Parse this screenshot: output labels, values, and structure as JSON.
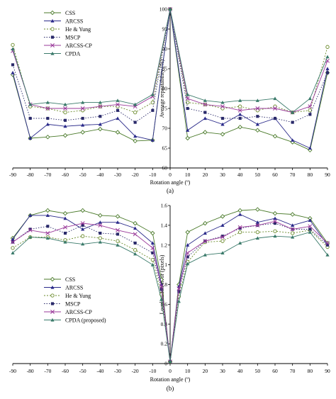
{
  "chart_data": [
    {
      "type": "line",
      "panel_label": "(a)",
      "xlabel": "Rotation angle (º)",
      "ylabel": "Average repeatability (%)",
      "x": [
        -90,
        -80,
        -70,
        -60,
        -50,
        -40,
        -30,
        -20,
        -10,
        0,
        10,
        20,
        30,
        40,
        50,
        60,
        70,
        80,
        90
      ],
      "xticks": [
        -90,
        -80,
        -70,
        -60,
        -50,
        -40,
        -30,
        -20,
        -10,
        0,
        10,
        20,
        30,
        40,
        50,
        60,
        70,
        80,
        90
      ],
      "ylim": [
        60,
        100
      ],
      "yticks": [
        60,
        65,
        70,
        75,
        80,
        85,
        90,
        95,
        100
      ],
      "legend_position": "top-left",
      "series": [
        {
          "name": "CSS",
          "color": "#4a7a2a",
          "dash": "",
          "marker": "diamond-open",
          "values": [
            83.5,
            67.5,
            67.8,
            68.2,
            69.0,
            69.8,
            69.0,
            66.8,
            67.0,
            100,
            67.5,
            69.0,
            68.5,
            70.3,
            69.5,
            68.0,
            66.5,
            64.5,
            84.0
          ]
        },
        {
          "name": "ARCSS",
          "color": "#2a2a8a",
          "dash": "",
          "marker": "triangle",
          "values": [
            84.0,
            67.5,
            71.0,
            70.5,
            70.8,
            71.0,
            72.5,
            68.0,
            67.0,
            100,
            69.5,
            72.5,
            71.0,
            73.5,
            71.0,
            72.5,
            67.0,
            65.0,
            85.0
          ]
        },
        {
          "name": "He & Yung",
          "color": "#6a8a2a",
          "dash": "2,2",
          "marker": "circle-open",
          "values": [
            91.0,
            75.5,
            75.0,
            74.0,
            74.5,
            75.5,
            75.5,
            74.0,
            76.5,
            100,
            76.5,
            76.0,
            75.0,
            75.5,
            74.5,
            75.5,
            74.0,
            74.5,
            90.5
          ]
        },
        {
          "name": "MSCP",
          "color": "#2a2a6a",
          "dash": "1.5,2",
          "marker": "square",
          "values": [
            86.0,
            72.5,
            72.5,
            72.0,
            72.5,
            73.0,
            74.5,
            71.5,
            74.5,
            100,
            75.0,
            74.0,
            72.5,
            72.5,
            73.0,
            72.5,
            71.5,
            73.5,
            84.0
          ]
        },
        {
          "name": "ARCSS-CP",
          "color": "#9a3a9a",
          "dash": "",
          "marker": "x",
          "values": [
            89.5,
            76.0,
            75.0,
            75.0,
            75.0,
            75.5,
            76.0,
            75.5,
            78.0,
            100,
            77.5,
            76.0,
            75.5,
            74.5,
            75.0,
            75.0,
            74.0,
            75.5,
            87.0
          ]
        },
        {
          "name": "CPDA",
          "color": "#3a7a6a",
          "dash": "",
          "marker": "triangle",
          "values": [
            90.0,
            76.0,
            76.5,
            76.0,
            76.5,
            76.5,
            77.0,
            76.0,
            78.5,
            100,
            78.5,
            77.0,
            76.5,
            77.0,
            77.0,
            77.5,
            74.0,
            77.5,
            88.0
          ]
        }
      ]
    },
    {
      "type": "line",
      "panel_label": "(b)",
      "xlabel": "Rotation angle (º)",
      "ylabel": "Localization error (pixels)",
      "x": [
        -90,
        -80,
        -70,
        -60,
        -50,
        -40,
        -30,
        -20,
        -10,
        -5,
        0,
        5,
        10,
        20,
        30,
        40,
        50,
        60,
        70,
        80,
        90
      ],
      "xticks": [
        -90,
        -80,
        -70,
        -60,
        -50,
        -40,
        -30,
        -20,
        -10,
        0,
        10,
        20,
        30,
        40,
        50,
        60,
        70,
        80,
        90
      ],
      "ylim": [
        0,
        1.6
      ],
      "yticks": [
        0,
        0.2,
        0.4,
        0.6,
        0.8,
        1,
        1.2,
        1.4,
        1.6
      ],
      "yticklabels": [
        "0",
        "0.2",
        "0.4",
        "0.6",
        "0.8",
        "1",
        "1.2",
        "1.4",
        "1.6"
      ],
      "legend_position": "bottom-left",
      "series": [
        {
          "name": "CSS",
          "color": "#4a7a2a",
          "dash": "",
          "marker": "diamond-open",
          "values": [
            1.27,
            1.5,
            1.55,
            1.52,
            1.55,
            1.5,
            1.49,
            1.42,
            1.32,
            0.85,
            0.02,
            0.8,
            1.33,
            1.42,
            1.49,
            1.55,
            1.56,
            1.52,
            1.51,
            1.47,
            1.22
          ]
        },
        {
          "name": "ARCSS",
          "color": "#2a2a8a",
          "dash": "",
          "marker": "triangle",
          "values": [
            1.26,
            1.5,
            1.5,
            1.47,
            1.36,
            1.43,
            1.43,
            1.37,
            1.22,
            0.8,
            0.02,
            0.78,
            1.2,
            1.32,
            1.4,
            1.51,
            1.43,
            1.47,
            1.4,
            1.45,
            1.2
          ]
        },
        {
          "name": "He & Yung",
          "color": "#6a8a2a",
          "dash": "2,2",
          "marker": "circle-open",
          "values": [
            1.17,
            1.28,
            1.28,
            1.25,
            1.29,
            1.27,
            1.24,
            1.15,
            1.05,
            0.7,
            0.02,
            0.68,
            1.03,
            1.23,
            1.24,
            1.33,
            1.33,
            1.34,
            1.32,
            1.35,
            1.18
          ]
        },
        {
          "name": "MSCP",
          "color": "#2a2a6a",
          "dash": "1.5,2",
          "marker": "square",
          "values": [
            1.23,
            1.36,
            1.39,
            1.32,
            1.4,
            1.32,
            1.31,
            1.22,
            1.12,
            0.75,
            0.02,
            0.73,
            1.08,
            1.24,
            1.29,
            1.37,
            1.4,
            1.42,
            1.36,
            1.36,
            1.2
          ]
        },
        {
          "name": "ARCSS-CP",
          "color": "#9a3a9a",
          "dash": "",
          "marker": "x",
          "values": [
            1.23,
            1.35,
            1.32,
            1.38,
            1.42,
            1.4,
            1.35,
            1.31,
            1.17,
            0.78,
            0.02,
            0.76,
            1.12,
            1.24,
            1.28,
            1.38,
            1.4,
            1.44,
            1.36,
            1.39,
            1.22
          ]
        },
        {
          "name": "CPDA (proposed)",
          "color": "#3a7a6a",
          "dash": "",
          "marker": "triangle",
          "values": [
            1.12,
            1.28,
            1.27,
            1.23,
            1.21,
            1.23,
            1.2,
            1.11,
            1.0,
            0.65,
            0.02,
            0.63,
            1.01,
            1.1,
            1.12,
            1.22,
            1.27,
            1.29,
            1.28,
            1.33,
            1.1
          ]
        }
      ]
    }
  ]
}
